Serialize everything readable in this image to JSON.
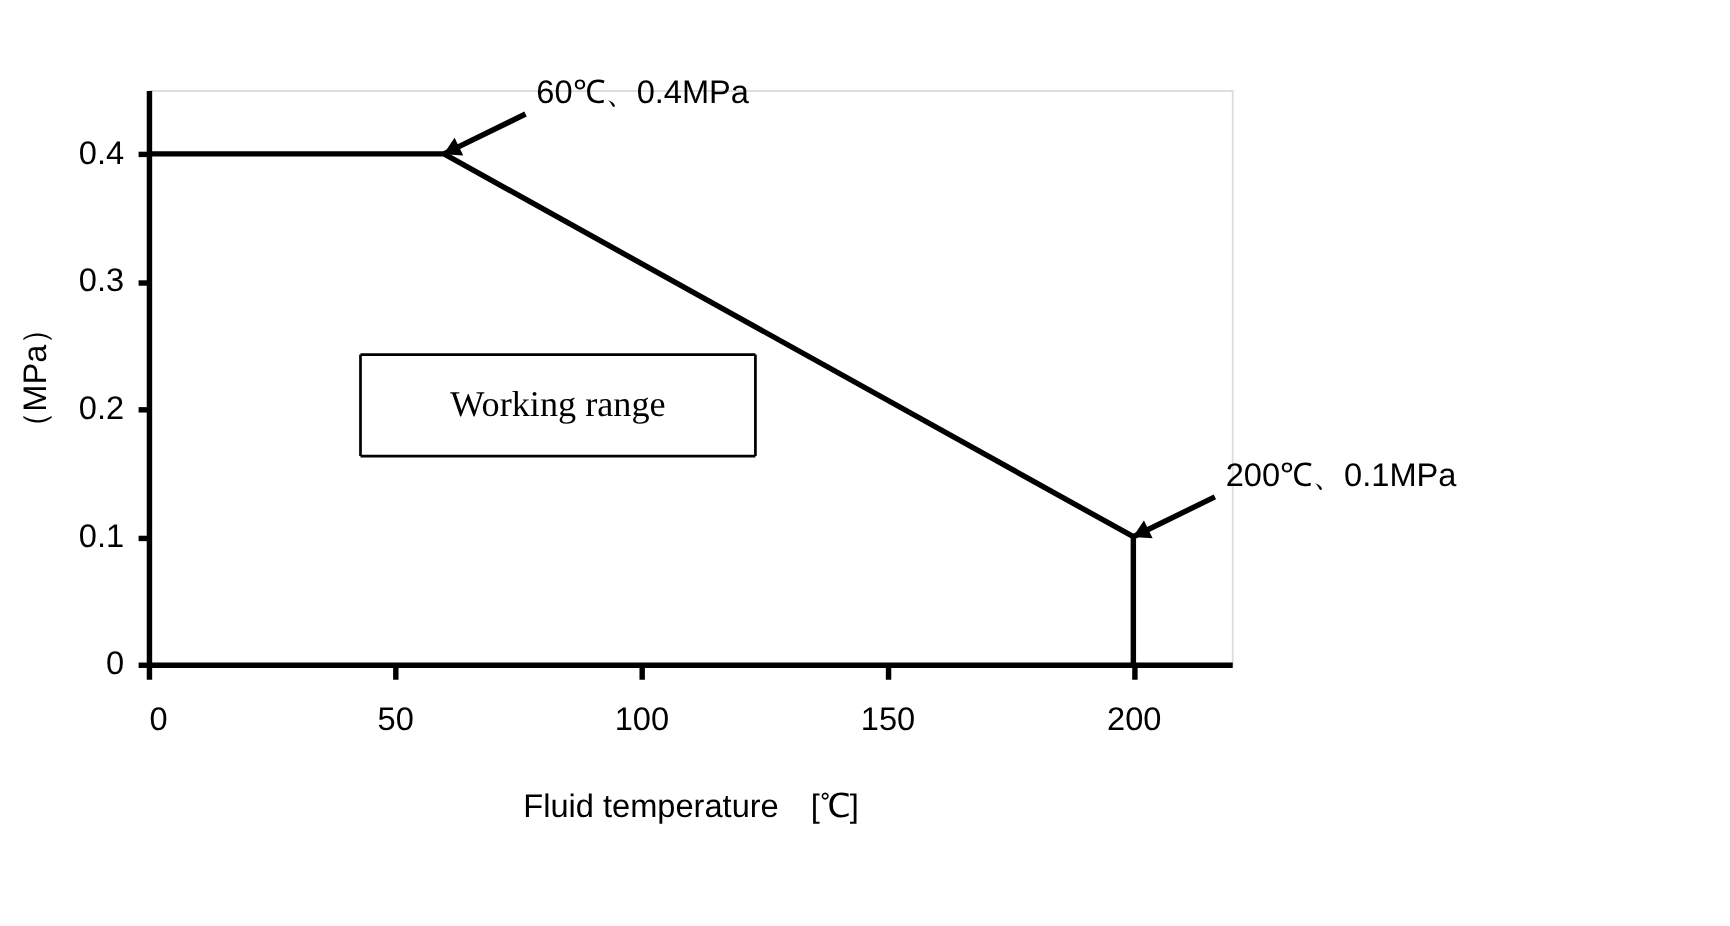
{
  "chart_data": {
    "type": "line",
    "xlabel": "Fluid temperature　[℃]",
    "ylabel": "（MPa）",
    "x": [
      0,
      60,
      200,
      200
    ],
    "series": [
      {
        "color": "#000000",
        "values": [
          0.4,
          0.4,
          0.1,
          0
        ]
      }
    ],
    "xlim": [
      0,
      220
    ],
    "xticks": [
      0,
      50,
      100,
      150,
      200
    ],
    "ylim": [
      0,
      0.45
    ],
    "yticks": [
      0,
      0.1,
      0.2,
      0.3,
      0.4
    ],
    "grid": false,
    "marker": "none",
    "line_style": "solid",
    "annotations": [
      {
        "text": "60℃、0.4MPa",
        "x": 60,
        "y": 0.4
      },
      {
        "text": "200℃、0.1MPa",
        "x": 200,
        "y": 0.1
      },
      "Working range"
    ]
  }
}
